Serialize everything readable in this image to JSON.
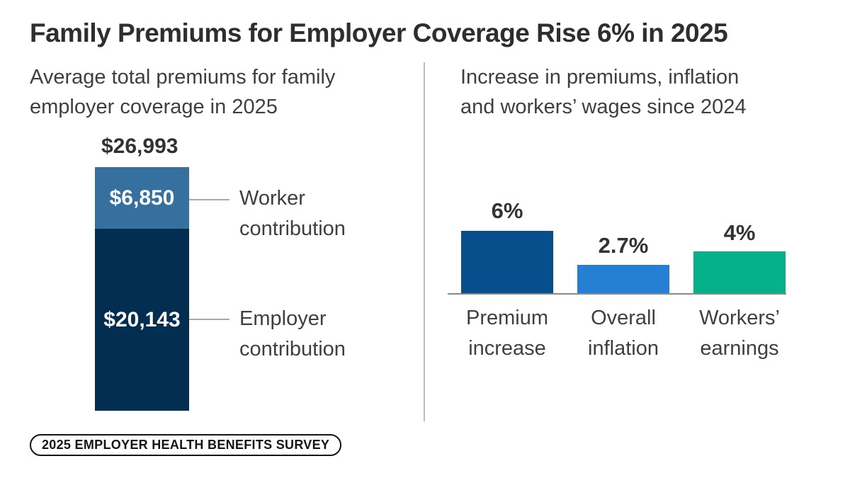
{
  "title": "Family Premiums for Employer Coverage Rise 6% in 2025",
  "source_badge": "2025 EMPLOYER HEALTH BENEFITS SURVEY",
  "left_panel": {
    "subtitle_line1": "Average total premiums for family",
    "subtitle_line2": "employer coverage in 2025"
  },
  "right_panel": {
    "subtitle_line1": "Increase in premiums, inflation",
    "subtitle_line2": "and workers’ wages since 2024"
  },
  "chart_data": [
    {
      "type": "bar",
      "subtype": "stacked_single_column",
      "title": "Average total premiums for family employer coverage in 2025",
      "total_value": 26993,
      "total_label": "$26,993",
      "segments": [
        {
          "name": "Worker contribution",
          "value": 6850,
          "label": "$6,850",
          "color": "#35709f"
        },
        {
          "name": "Employer contribution",
          "value": 20143,
          "label": "$20,143",
          "color": "#042d52"
        }
      ]
    },
    {
      "type": "bar",
      "title": "Increase in premiums, inflation and workers’ wages since 2024",
      "categories": [
        "Premium increase",
        "Overall inflation",
        "Workers’ earnings"
      ],
      "values": [
        6,
        2.7,
        4
      ],
      "value_labels": [
        "6%",
        "2.7%",
        "4%"
      ],
      "colors": [
        "#064f8c",
        "#2580d3",
        "#04b189"
      ],
      "ylim": [
        0,
        6.6
      ],
      "grid": false,
      "legend": "none"
    }
  ],
  "colors": {
    "background": "#ffffff",
    "title_text": "#2e2e2e",
    "body_text": "#3f3f3f",
    "divider": "#bcbcbc",
    "connector_line": "#a8a8a8",
    "axis_baseline": "#8a8a8a",
    "badge_border": "#141414"
  }
}
